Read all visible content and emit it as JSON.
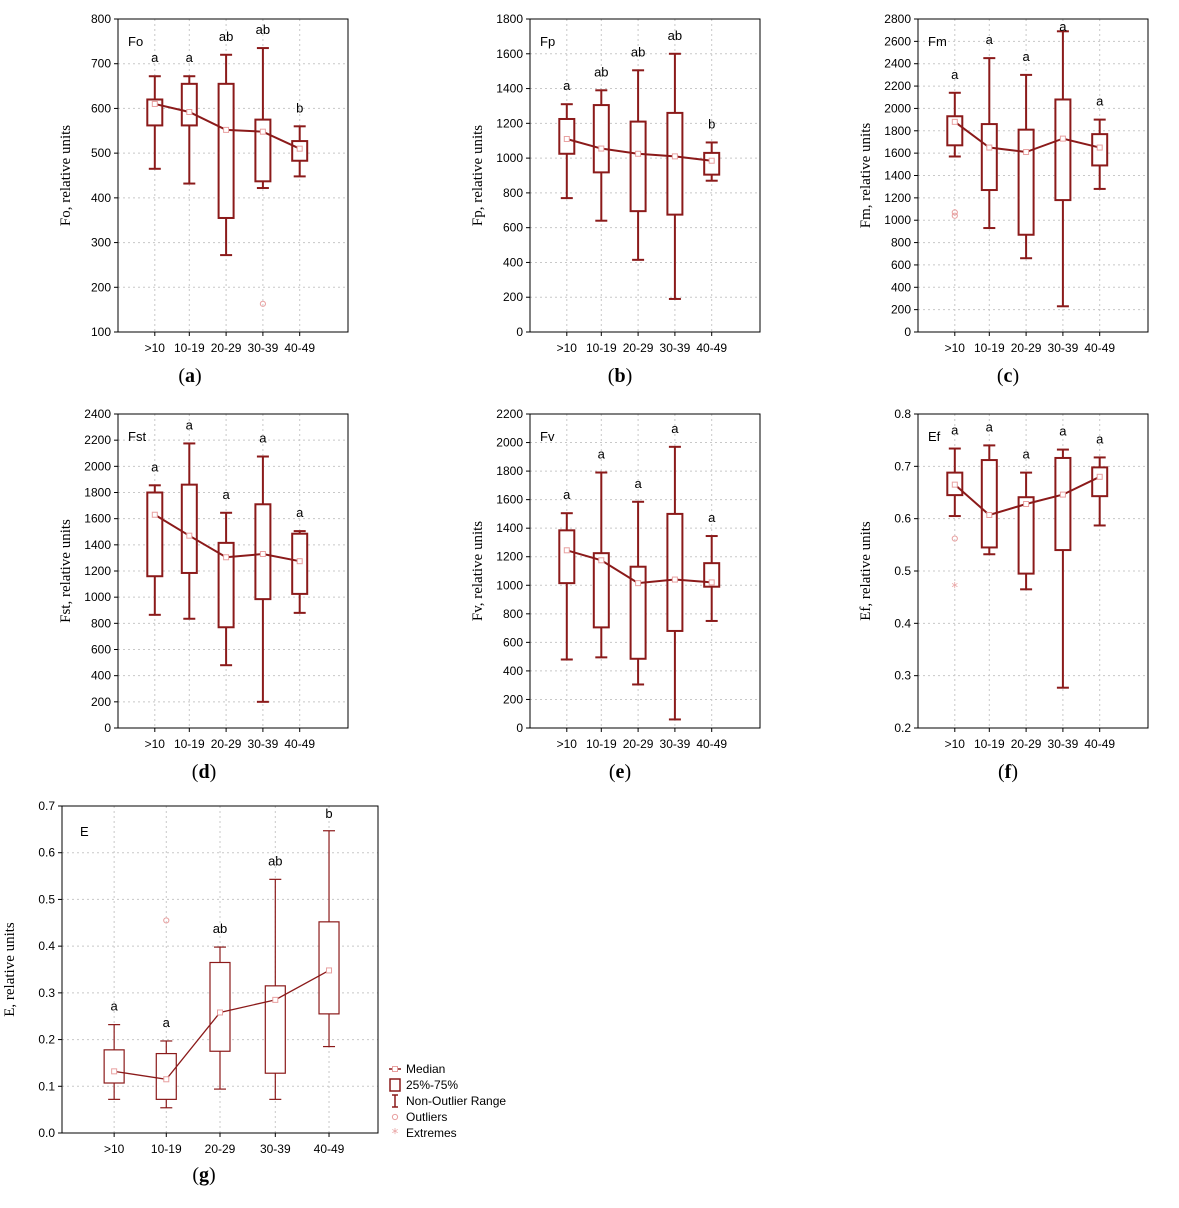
{
  "colors": {
    "box": "#8b1a1a",
    "median": "#8b1a1a",
    "outlier": "#e8a0a0",
    "extreme": "#e8a0a0",
    "frame": "#000000"
  },
  "legend": {
    "median": "Median",
    "box": "25%-75%",
    "range": "Non-Outlier Range",
    "outliers": "Outliers",
    "extremes": "Extremes"
  },
  "chart_data": [
    {
      "type": "box",
      "panel": "(a)",
      "caption_letter": "a",
      "title": "Fo",
      "ylabel": "Fo, relative units",
      "ylim": [
        100,
        800
      ],
      "yticks": [
        100,
        200,
        300,
        400,
        500,
        600,
        700,
        800
      ],
      "categories": [
        ">10",
        "10-19",
        "20-29",
        "30-39",
        "40-49"
      ],
      "median": [
        610,
        592,
        552,
        548,
        510
      ],
      "q1": [
        562,
        562,
        355,
        437,
        483
      ],
      "q3": [
        620,
        655,
        655,
        575,
        527
      ],
      "whisker_low": [
        465,
        432,
        272,
        422,
        448
      ],
      "whisker_high": [
        672,
        672,
        720,
        735,
        560
      ],
      "outliers": [
        [],
        [],
        [],
        [
          163
        ],
        []
      ],
      "extremes": [
        [],
        [],
        [],
        [],
        []
      ],
      "sig": [
        "a",
        "a",
        "ab",
        "ab",
        "b"
      ]
    },
    {
      "type": "box",
      "panel": "(b)",
      "caption_letter": "b",
      "title": "Fp",
      "ylabel": "Fp, relative units",
      "ylim": [
        0,
        1800
      ],
      "yticks": [
        0,
        200,
        400,
        600,
        800,
        1000,
        1200,
        1400,
        1600,
        1800
      ],
      "categories": [
        ">10",
        "10-19",
        "20-29",
        "30-39",
        "40-49"
      ],
      "median": [
        1110,
        1055,
        1025,
        1010,
        985
      ],
      "q1": [
        1025,
        918,
        695,
        675,
        905
      ],
      "q3": [
        1225,
        1305,
        1210,
        1260,
        1030
      ],
      "whisker_low": [
        770,
        640,
        415,
        190,
        870
      ],
      "whisker_high": [
        1310,
        1390,
        1505,
        1600,
        1090
      ],
      "outliers": [
        [],
        [],
        [],
        [],
        []
      ],
      "extremes": [
        [],
        [],
        [],
        [],
        []
      ],
      "sig": [
        "a",
        "ab",
        "ab",
        "ab",
        "b"
      ]
    },
    {
      "type": "box",
      "panel": "(c)",
      "caption_letter": "c",
      "title": "Fm",
      "ylabel": "Fm, relative units",
      "ylim": [
        0,
        2800
      ],
      "yticks": [
        0,
        200,
        400,
        600,
        800,
        1000,
        1200,
        1400,
        1600,
        1800,
        2000,
        2200,
        2400,
        2600,
        2800
      ],
      "categories": [
        ">10",
        "10-19",
        "20-29",
        "30-39",
        "40-49"
      ],
      "median": [
        1880,
        1650,
        1610,
        1730,
        1650
      ],
      "q1": [
        1670,
        1270,
        870,
        1180,
        1490
      ],
      "q3": [
        1930,
        1860,
        1810,
        2080,
        1770
      ],
      "whisker_low": [
        1570,
        930,
        660,
        230,
        1280
      ],
      "whisker_high": [
        2140,
        2450,
        2300,
        2690,
        1900
      ],
      "outliers": [
        [
          1040,
          1070
        ],
        [],
        [],
        [],
        []
      ],
      "extremes": [
        [],
        [],
        [],
        [],
        []
      ],
      "sig": [
        "a",
        "a",
        "a",
        "a",
        "a"
      ]
    },
    {
      "type": "box",
      "panel": "(d)",
      "caption_letter": "d",
      "title": "Fst",
      "ylabel": "Fst, relative units",
      "ylim": [
        0,
        2400
      ],
      "yticks": [
        0,
        200,
        400,
        600,
        800,
        1000,
        1200,
        1400,
        1600,
        1800,
        2000,
        2200,
        2400
      ],
      "categories": [
        ">10",
        "10-19",
        "20-29",
        "30-39",
        "40-49"
      ],
      "median": [
        1630,
        1470,
        1305,
        1330,
        1275
      ],
      "q1": [
        1160,
        1185,
        770,
        985,
        1025
      ],
      "q3": [
        1800,
        1860,
        1415,
        1710,
        1485
      ],
      "whisker_low": [
        865,
        835,
        480,
        200,
        880
      ],
      "whisker_high": [
        1855,
        2175,
        1645,
        2075,
        1505
      ],
      "outliers": [
        [],
        [],
        [],
        [],
        []
      ],
      "extremes": [
        [],
        [],
        [],
        [],
        []
      ],
      "sig": [
        "a",
        "a",
        "a",
        "a",
        "a"
      ]
    },
    {
      "type": "box",
      "panel": "(e)",
      "caption_letter": "e",
      "title": "Fv",
      "ylabel": "Fv, relative units",
      "ylim": [
        0,
        2200
      ],
      "yticks": [
        0,
        200,
        400,
        600,
        800,
        1000,
        1200,
        1400,
        1600,
        1800,
        2000,
        2200
      ],
      "categories": [
        ">10",
        "10-19",
        "20-29",
        "30-39",
        "40-49"
      ],
      "median": [
        1245,
        1175,
        1015,
        1040,
        1020
      ],
      "q1": [
        1015,
        705,
        485,
        680,
        990
      ],
      "q3": [
        1385,
        1225,
        1130,
        1500,
        1155
      ],
      "whisker_low": [
        480,
        495,
        305,
        60,
        750
      ],
      "whisker_high": [
        1505,
        1790,
        1585,
        1970,
        1345
      ],
      "outliers": [
        [],
        [],
        [],
        [],
        []
      ],
      "extremes": [
        [],
        [],
        [],
        [],
        []
      ],
      "sig": [
        "a",
        "a",
        "a",
        "a",
        "a"
      ]
    },
    {
      "type": "box",
      "panel": "(f)",
      "caption_letter": "f",
      "title": "Ef",
      "ylabel": "Ef, relative units",
      "ylim": [
        0.2,
        0.8
      ],
      "yticks": [
        0.2,
        0.3,
        0.4,
        0.5,
        0.6,
        0.7,
        0.8
      ],
      "categories": [
        ">10",
        "10-19",
        "20-29",
        "30-39",
        "40-49"
      ],
      "median": [
        0.665,
        0.607,
        0.628,
        0.646,
        0.68
      ],
      "q1": [
        0.645,
        0.545,
        0.495,
        0.54,
        0.643
      ],
      "q3": [
        0.688,
        0.712,
        0.641,
        0.716,
        0.698
      ],
      "whisker_low": [
        0.605,
        0.532,
        0.465,
        0.277,
        0.587
      ],
      "whisker_high": [
        0.734,
        0.74,
        0.688,
        0.732,
        0.717
      ],
      "outliers": [
        [
          0.562
        ],
        [],
        [],
        [],
        []
      ],
      "extremes": [
        [
          0.469
        ],
        [],
        [],
        [],
        []
      ],
      "sig": [
        "a",
        "a",
        "a",
        "a",
        "a"
      ]
    },
    {
      "type": "box",
      "panel": "(g)",
      "caption_letter": "g",
      "title": "E",
      "ylabel": "E, relative units",
      "ylim": [
        0.0,
        0.7
      ],
      "yticks": [
        0.0,
        0.1,
        0.2,
        0.3,
        0.4,
        0.5,
        0.6,
        0.7
      ],
      "categories": [
        ">10",
        "10-19",
        "20-29",
        "30-39",
        "40-49"
      ],
      "median": [
        0.132,
        0.115,
        0.258,
        0.285,
        0.348
      ],
      "q1": [
        0.107,
        0.072,
        0.175,
        0.128,
        0.255
      ],
      "q3": [
        0.178,
        0.17,
        0.365,
        0.315,
        0.452
      ],
      "whisker_low": [
        0.072,
        0.054,
        0.094,
        0.072,
        0.185
      ],
      "whisker_high": [
        0.232,
        0.197,
        0.398,
        0.543,
        0.647
      ],
      "outliers": [
        [],
        [
          0.455
        ],
        [],
        [],
        []
      ],
      "extremes": [
        [],
        [],
        [],
        [],
        []
      ],
      "sig": [
        "a",
        "a",
        "ab",
        "ab",
        "b"
      ]
    }
  ]
}
